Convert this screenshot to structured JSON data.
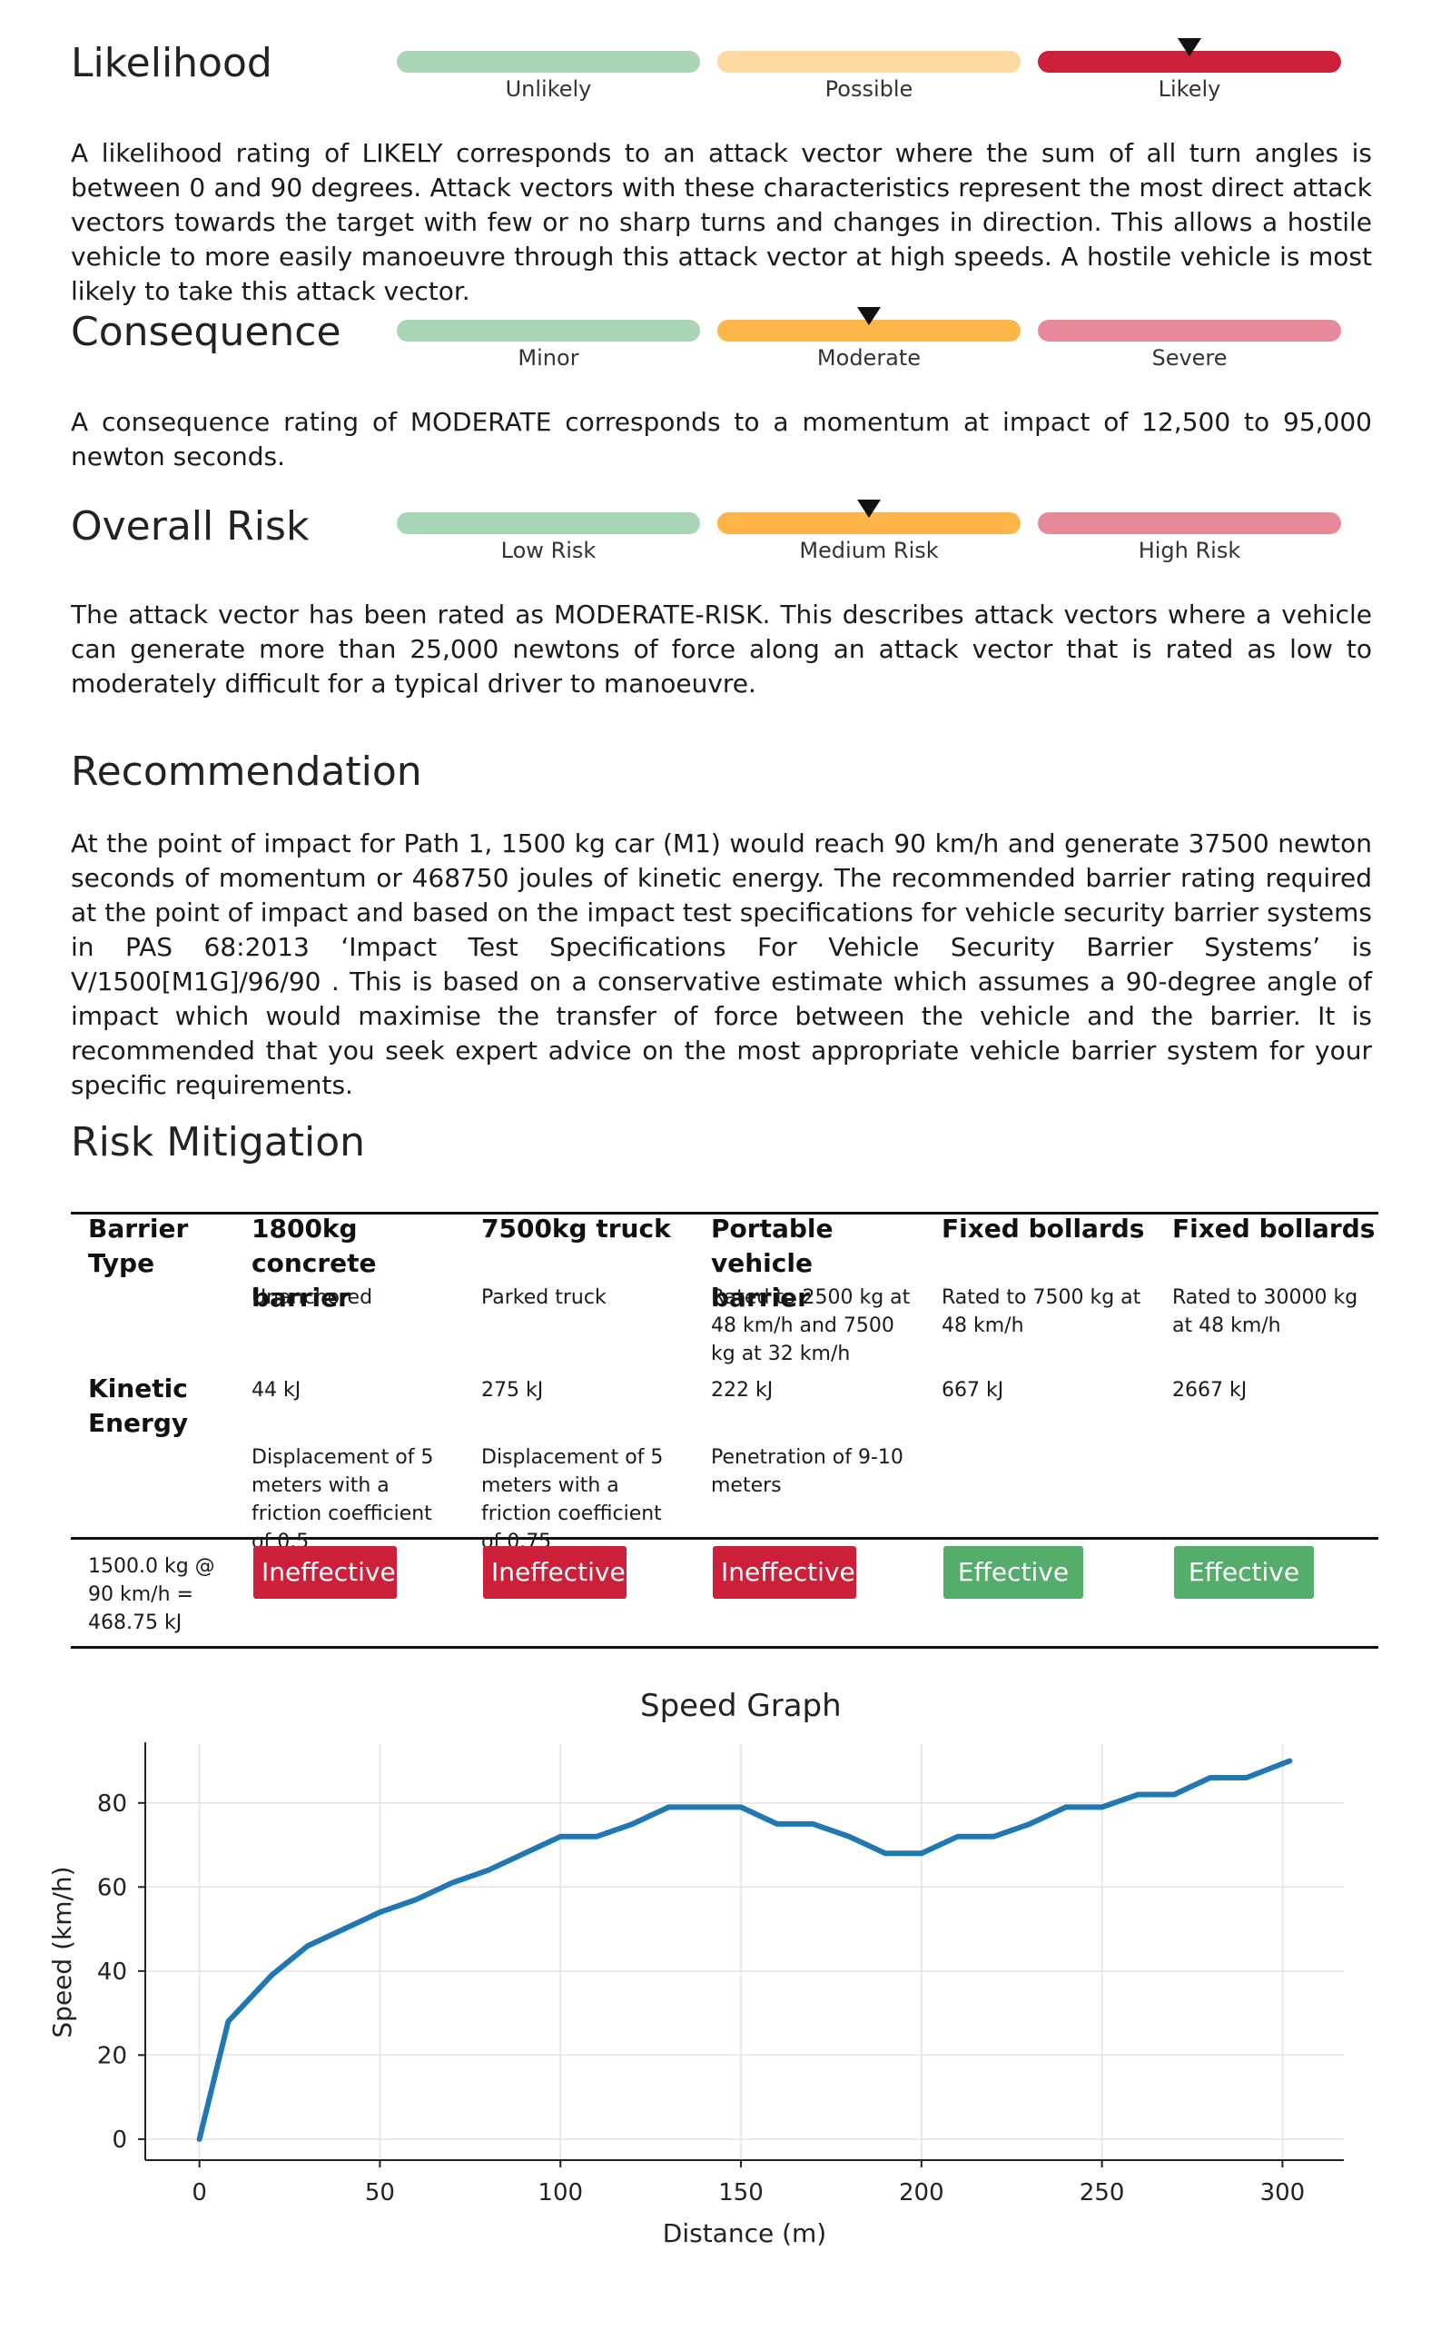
{
  "likelihood": {
    "heading": "Likelihood",
    "levels": [
      "Unlikely",
      "Possible",
      "Likely"
    ],
    "selected": "Likely",
    "colors": [
      "#a8d5b5",
      "#fbd9a0",
      "#cc1f3a"
    ],
    "description": "A likelihood rating of LIKELY corresponds to an attack vector where the sum of all turn angles is between 0 and 90 degrees. Attack vectors with these characteristics represent the most direct attack vectors towards the target with few or no sharp turns and changes in direction. This allows a hostile vehicle to more easily manoeuvre through this attack vector at high speeds. A hostile vehicle is most likely to take this attack vector."
  },
  "consequence": {
    "heading": "Consequence",
    "levels": [
      "Minor",
      "Moderate",
      "Severe"
    ],
    "selected": "Moderate",
    "colors": [
      "#a8d5b5",
      "#fbb548",
      "#e8899b"
    ],
    "description": "A consequence rating of MODERATE corresponds to a momentum at impact of 12,500 to 95,000 newton seconds."
  },
  "overall_risk": {
    "heading": "Overall Risk",
    "levels": [
      "Low Risk",
      "Medium Risk",
      "High Risk"
    ],
    "selected": "Medium Risk",
    "colors": [
      "#a8d5b5",
      "#fbb548",
      "#e8899b"
    ],
    "description": "The attack vector has been rated as MODERATE-RISK. This describes attack vectors where a vehicle can generate more than 25,000 newtons of force along an attack vector that is rated as low to moderately difficult for a typical driver to manoeuvre."
  },
  "recommendation": {
    "heading": "Recommendation",
    "text": "At the point of impact for Path 1, 1500 kg car (M1) would reach 90 km/h and generate 37500 newton seconds of momentum or 468750 joules of kinetic energy. The recommended barrier rating required at the point of impact and based on the impact test specifications for vehicle security barrier systems in PAS 68:2013 ‘Impact Test Specifications For Vehicle Security Barrier Systems’ is V/1500[M1G]/96/90 . This is based on a conservative estimate which assumes a 90-degree angle of impact which would maximise the transfer of force between the vehicle and the barrier. It is recommended that you seek expert advice on the most appropriate vehicle barrier system for your specific requirements."
  },
  "risk_mitigation": {
    "heading": "Risk Mitigation",
    "barrier_type_label": "Barrier Type",
    "kinetic_energy_label": "Kinetic Energy",
    "impact_label": "1500.0 kg @ 90 km/h = 468.75 kJ",
    "columns": [
      {
        "name": "1800kg concrete barrier",
        "desc": "Unanchored",
        "energy": "44 kJ",
        "note": "Displacement of 5 meters with a friction coefficient of 0.5",
        "result": "Ineffective"
      },
      {
        "name": "7500kg truck",
        "desc": "Parked truck",
        "energy": "275 kJ",
        "note": "Displacement of 5 meters with a friction coefficient of 0.75",
        "result": "Ineffective"
      },
      {
        "name": "Portable vehicle barrier",
        "desc": "Rated to 2500 kg at 48 km/h and 7500 kg at 32 km/h",
        "energy": "222 kJ",
        "note": "Penetration of 9-10 meters",
        "result": "Ineffective"
      },
      {
        "name": "Fixed bollards",
        "desc": "Rated to 7500 kg at 48 km/h",
        "energy": "667 kJ",
        "note": "",
        "result": "Effective"
      },
      {
        "name": "Fixed bollards",
        "desc": "Rated to 30000 kg at 48 km/h",
        "energy": "2667 kJ",
        "note": "",
        "result": "Effective"
      }
    ],
    "colors": {
      "ineffective": "#cc1f3a",
      "effective": "#55ad6c"
    }
  },
  "chart_data": {
    "type": "line",
    "title": "Speed Graph",
    "xlabel": "Distance (m)",
    "ylabel": "Speed (km/h)",
    "xlim": [
      -15,
      317
    ],
    "ylim": [
      -5,
      94
    ],
    "xticks": [
      0,
      50,
      100,
      150,
      200,
      250,
      300
    ],
    "yticks": [
      0,
      20,
      40,
      60,
      80
    ],
    "grid": true,
    "line_color": "#1f77b4",
    "x": [
      0,
      8,
      20,
      30,
      40,
      50,
      60,
      70,
      80,
      90,
      100,
      110,
      120,
      130,
      140,
      150,
      160,
      170,
      180,
      190,
      200,
      210,
      220,
      230,
      240,
      250,
      260,
      270,
      280,
      290,
      302
    ],
    "y": [
      0,
      28,
      39,
      46,
      50,
      54,
      57,
      61,
      64,
      68,
      72,
      72,
      75,
      79,
      79,
      79,
      75,
      75,
      72,
      68,
      68,
      72,
      72,
      75,
      79,
      79,
      82,
      82,
      86,
      86,
      90
    ]
  }
}
